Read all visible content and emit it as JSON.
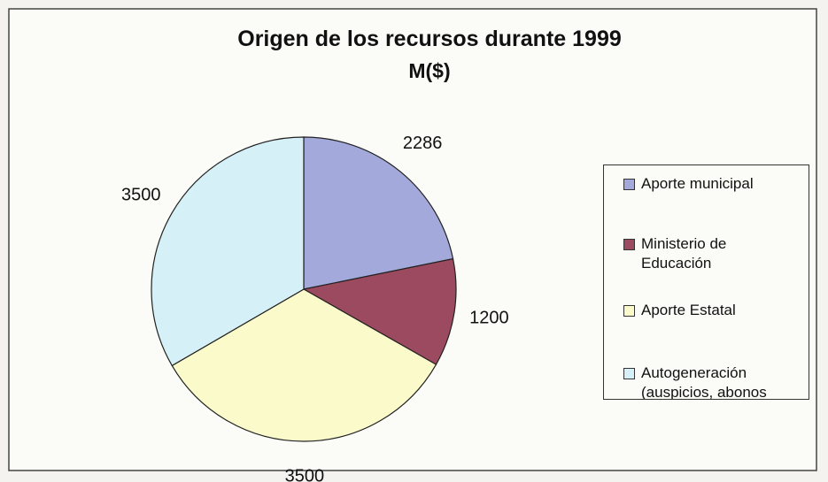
{
  "chart_data": {
    "type": "pie",
    "title": "Origen de los recursos durante 1999",
    "subtitle": "M($)",
    "categories": [
      "Aporte municipal",
      "Ministerio de Educación",
      "Aporte Estatal",
      "Autogeneración (auspicios, abonos"
    ],
    "values": [
      2286,
      1200,
      3500,
      3500
    ],
    "colors": [
      "#a3aadb",
      "#9b4a60",
      "#fbfacb",
      "#d5f0f6"
    ],
    "legend": "right"
  }
}
